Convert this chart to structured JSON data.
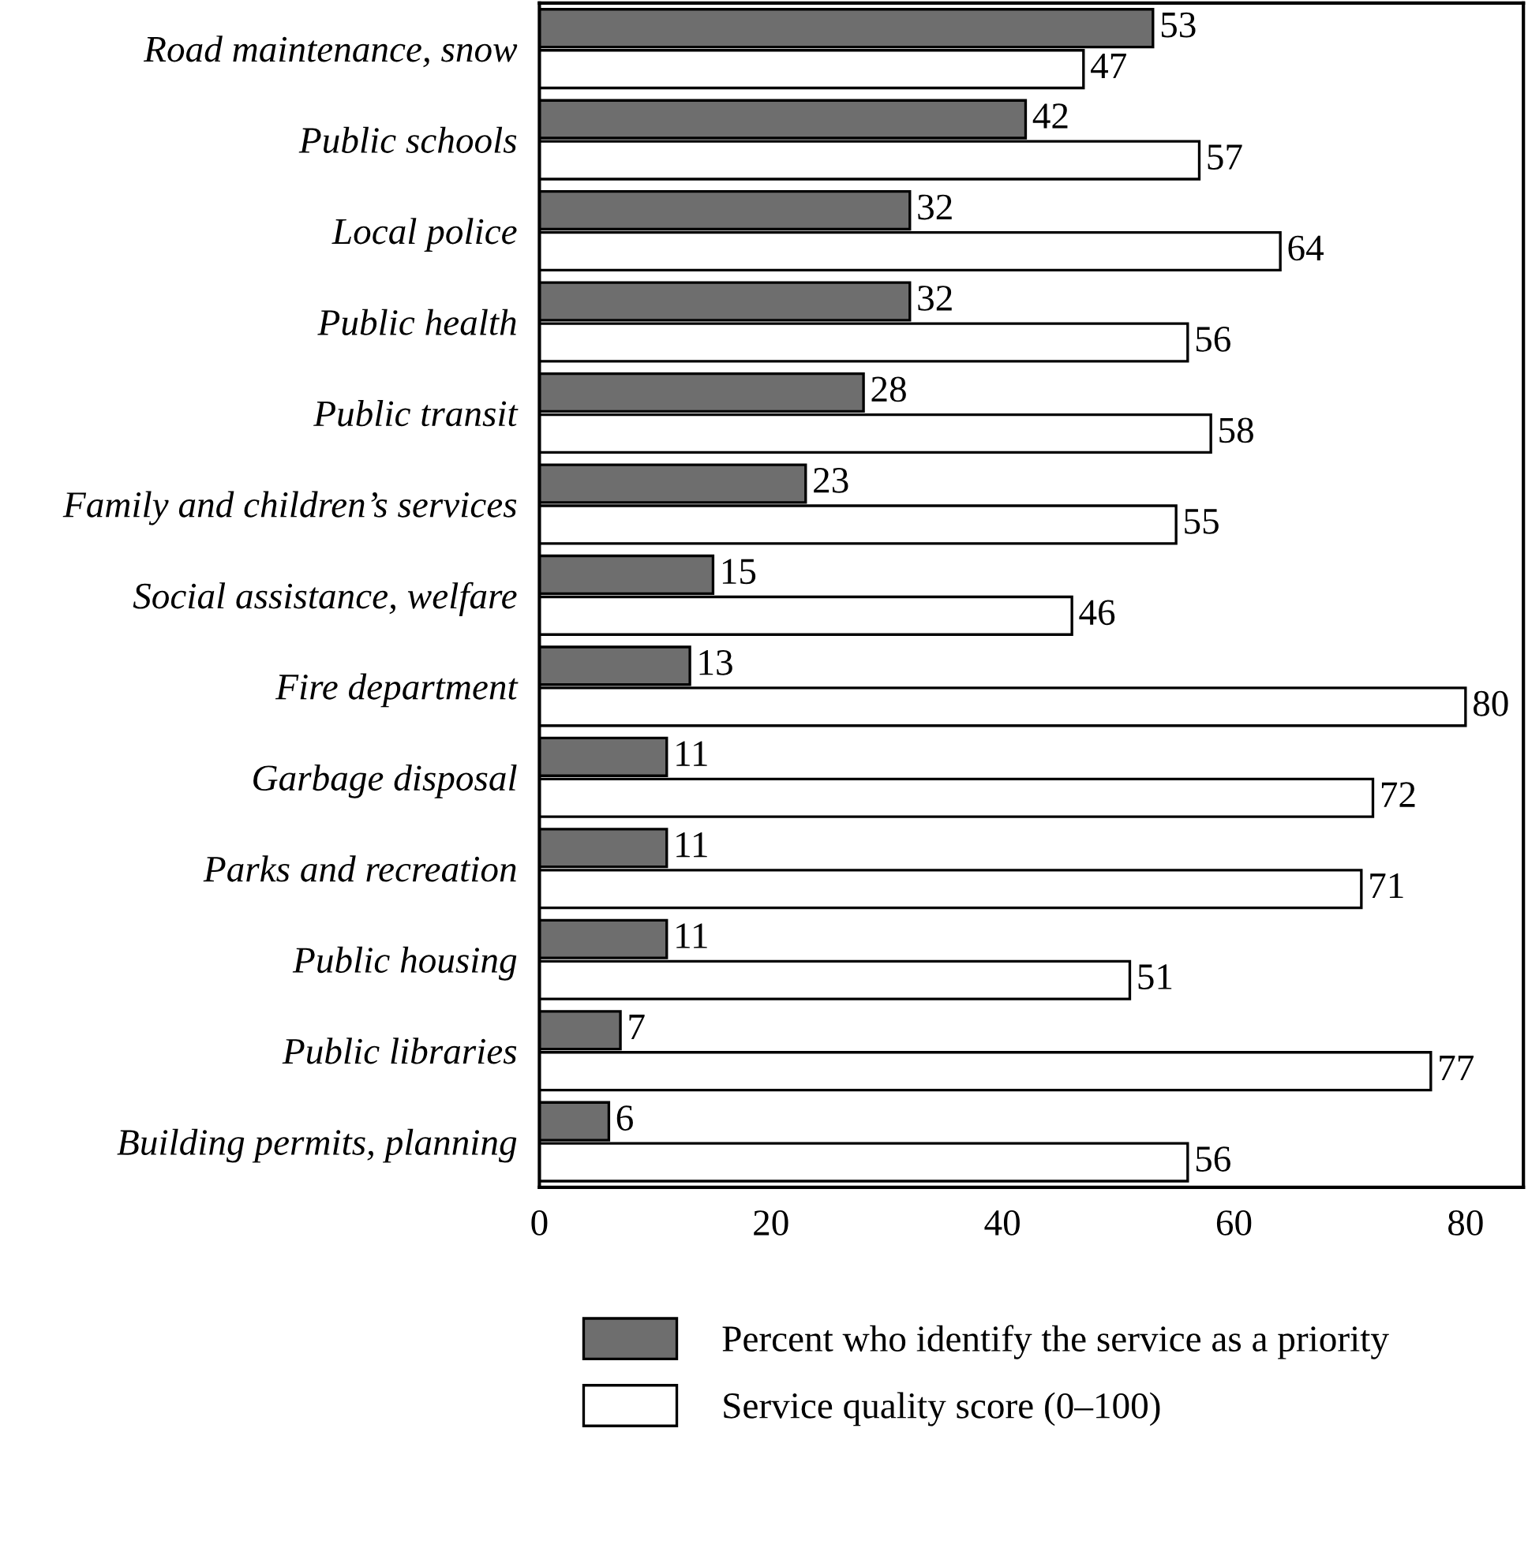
{
  "chart_data": {
    "type": "bar",
    "orientation": "horizontal",
    "categories": [
      "Road maintenance, snow",
      "Public schools",
      "Local police",
      "Public health",
      "Public transit",
      "Family and children’s services",
      "Social assistance, welfare",
      "Fire department",
      "Garbage disposal",
      "Parks and recreation",
      "Public housing",
      "Public libraries",
      "Building permits, planning"
    ],
    "series": [
      {
        "name": "Percent who identify the service as a priority",
        "color": "#6e6e6e",
        "values": [
          53,
          42,
          32,
          32,
          28,
          23,
          15,
          13,
          11,
          11,
          11,
          7,
          6
        ]
      },
      {
        "name": "Service quality score (0–100)",
        "color": "#ffffff",
        "values": [
          47,
          57,
          64,
          56,
          58,
          55,
          46,
          80,
          72,
          71,
          51,
          77,
          56
        ]
      }
    ],
    "xlim": [
      0,
      85
    ],
    "xticks": [
      0,
      20,
      40,
      60,
      80
    ],
    "data_labels": true,
    "legend": "bottom",
    "grid": false
  }
}
